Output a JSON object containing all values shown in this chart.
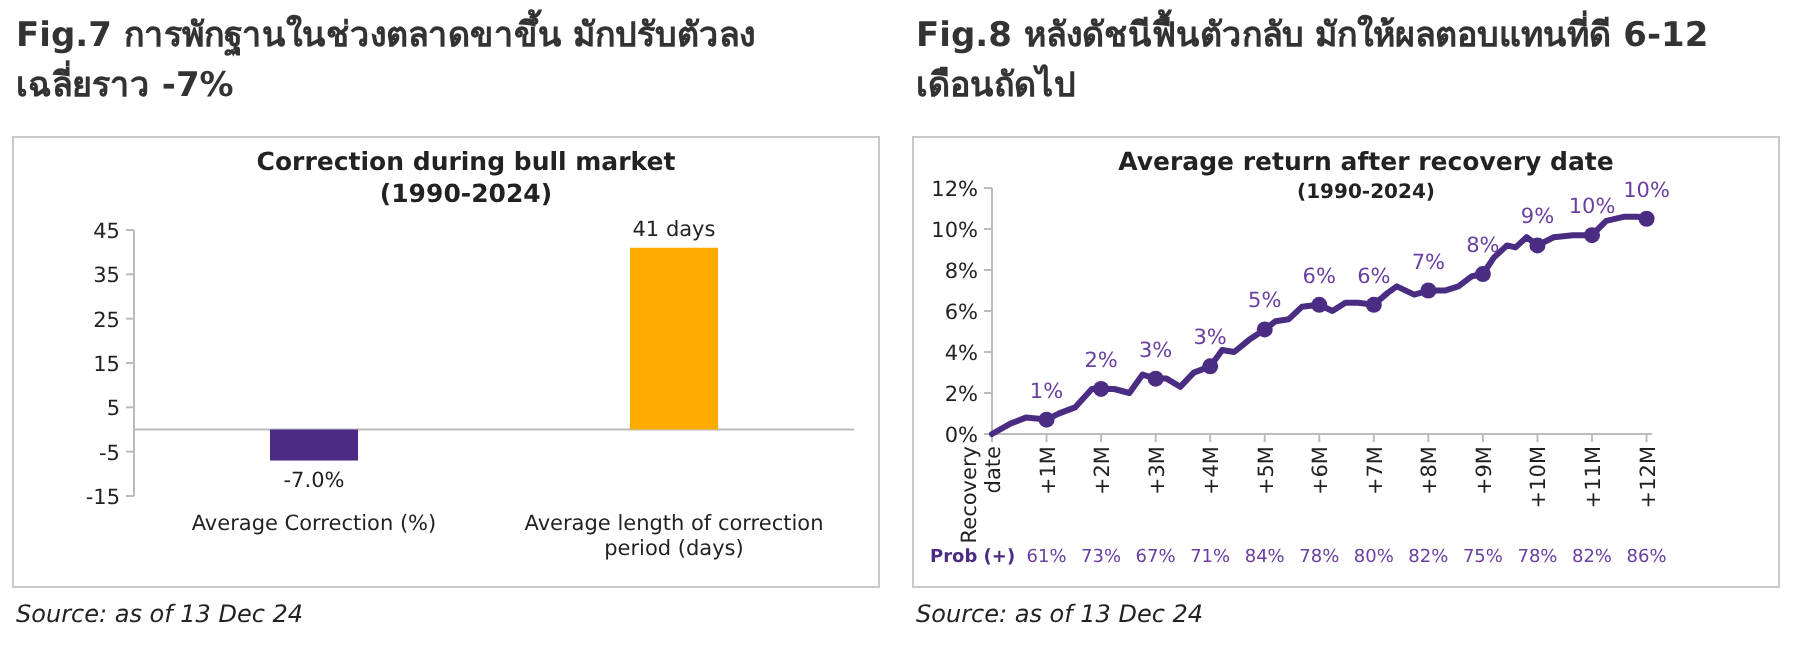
{
  "chart_data": [
    {
      "type": "bar",
      "title": "Fig.7 การพักฐานในช่วงตลาดขาขึ้น มักปรับตัวลงเฉลี่ยราว -7%",
      "subtitle": "Correction during bull market",
      "annotations": [
        "(1990-2024)",
        "Source: as of 13 Dec 24"
      ],
      "categories": [
        "Average Correction (%)",
        "Average length of correction period (days)"
      ],
      "values": [
        -7,
        41
      ],
      "colors": [
        "#4b2b84",
        "#ffab00"
      ],
      "value_labels": [
        "-7.0%",
        "41 days"
      ],
      "ylim": [
        -15,
        45
      ],
      "yticks": [
        -15,
        -5,
        5,
        15,
        25,
        35,
        45
      ]
    },
    {
      "type": "line",
      "title": "Fig.8 หลังดัชนีฟื้นตัวกลับ มักให้ผลตอบแทนที่ดี 6-12 เดือนถัดไป",
      "subtitle": "Average return after recovery date",
      "annotations": [
        "(1990-2024)",
        "Prob (+)",
        "61%",
        "73%",
        "67%",
        "71%",
        "84%",
        "78%",
        "80%",
        "82%",
        "75%",
        "78%",
        "82%",
        "86%",
        "Source: as of 13 Dec 24"
      ],
      "xlim": [
        0,
        12.1
      ],
      "xticks": [
        {
          "value": 0,
          "label": "Recovery date"
        },
        {
          "value": 1,
          "label": "+1M"
        },
        {
          "value": 2,
          "label": "+2M"
        },
        {
          "value": 3,
          "label": "+3M"
        },
        {
          "value": 4,
          "label": "+4M"
        },
        {
          "value": 5,
          "label": "+5M"
        },
        {
          "value": 6,
          "label": "+6M"
        },
        {
          "value": 7,
          "label": "+7M"
        },
        {
          "value": 8,
          "label": "+8M"
        },
        {
          "value": 9,
          "label": "+9M"
        },
        {
          "value": 10,
          "label": "+10M"
        },
        {
          "value": 11,
          "label": "+11M"
        },
        {
          "value": 12,
          "label": "+12M"
        }
      ],
      "ylim": [
        0,
        12
      ],
      "yticks": [
        {
          "value": 0,
          "label": "0%"
        },
        {
          "value": 2,
          "label": "2%"
        },
        {
          "value": 4,
          "label": "4%"
        },
        {
          "value": 6,
          "label": "6%"
        },
        {
          "value": 8,
          "label": "8%"
        },
        {
          "value": 10,
          "label": "10%"
        },
        {
          "value": 12,
          "label": "12%"
        }
      ],
      "series": [
        {
          "color": "#4b2c83",
          "x": [
            0,
            0.33,
            0.62,
            1,
            1.22,
            1.52,
            1.83,
            2,
            2.24,
            2.52,
            2.76,
            3,
            3.2,
            3.45,
            3.7,
            4,
            4.22,
            4.44,
            4.72,
            5,
            5.2,
            5.44,
            5.68,
            6,
            6.24,
            6.48,
            6.71,
            7,
            7.26,
            7.42,
            7.74,
            8,
            8.3,
            8.55,
            8.8,
            9,
            9.2,
            9.44,
            9.6,
            9.8,
            10,
            10.3,
            10.65,
            11,
            11.26,
            11.58,
            11.84,
            12
          ],
          "values": [
            0,
            0.5,
            0.8,
            0.7,
            1.0,
            1.3,
            2.2,
            2.2,
            2.2,
            2.0,
            2.9,
            2.7,
            2.7,
            2.3,
            3.0,
            3.3,
            4.1,
            4.0,
            4.6,
            5.1,
            5.5,
            5.6,
            6.2,
            6.3,
            6.0,
            6.4,
            6.4,
            6.3,
            6.9,
            7.2,
            6.8,
            7.0,
            7.0,
            7.2,
            7.7,
            7.8,
            8.6,
            9.2,
            9.1,
            9.6,
            9.2,
            9.6,
            9.7,
            9.7,
            10.4,
            10.6,
            10.6,
            10.5
          ]
        },
        {
          "type": "scatter",
          "color": "#4b2c83",
          "marker": "circle",
          "x": [
            1,
            2,
            3,
            4,
            5,
            6,
            7,
            8,
            9,
            10,
            11,
            12
          ],
          "values": [
            0.7,
            2.2,
            2.7,
            3.3,
            5.1,
            6.3,
            6.3,
            7.0,
            7.8,
            9.2,
            9.7,
            10.5
          ],
          "value_labels": [
            "1%",
            "2%",
            "3%",
            "3%",
            "5%",
            "6%",
            "6%",
            "7%",
            "8%",
            "9%",
            "10%",
            "10%"
          ]
        }
      ]
    }
  ]
}
